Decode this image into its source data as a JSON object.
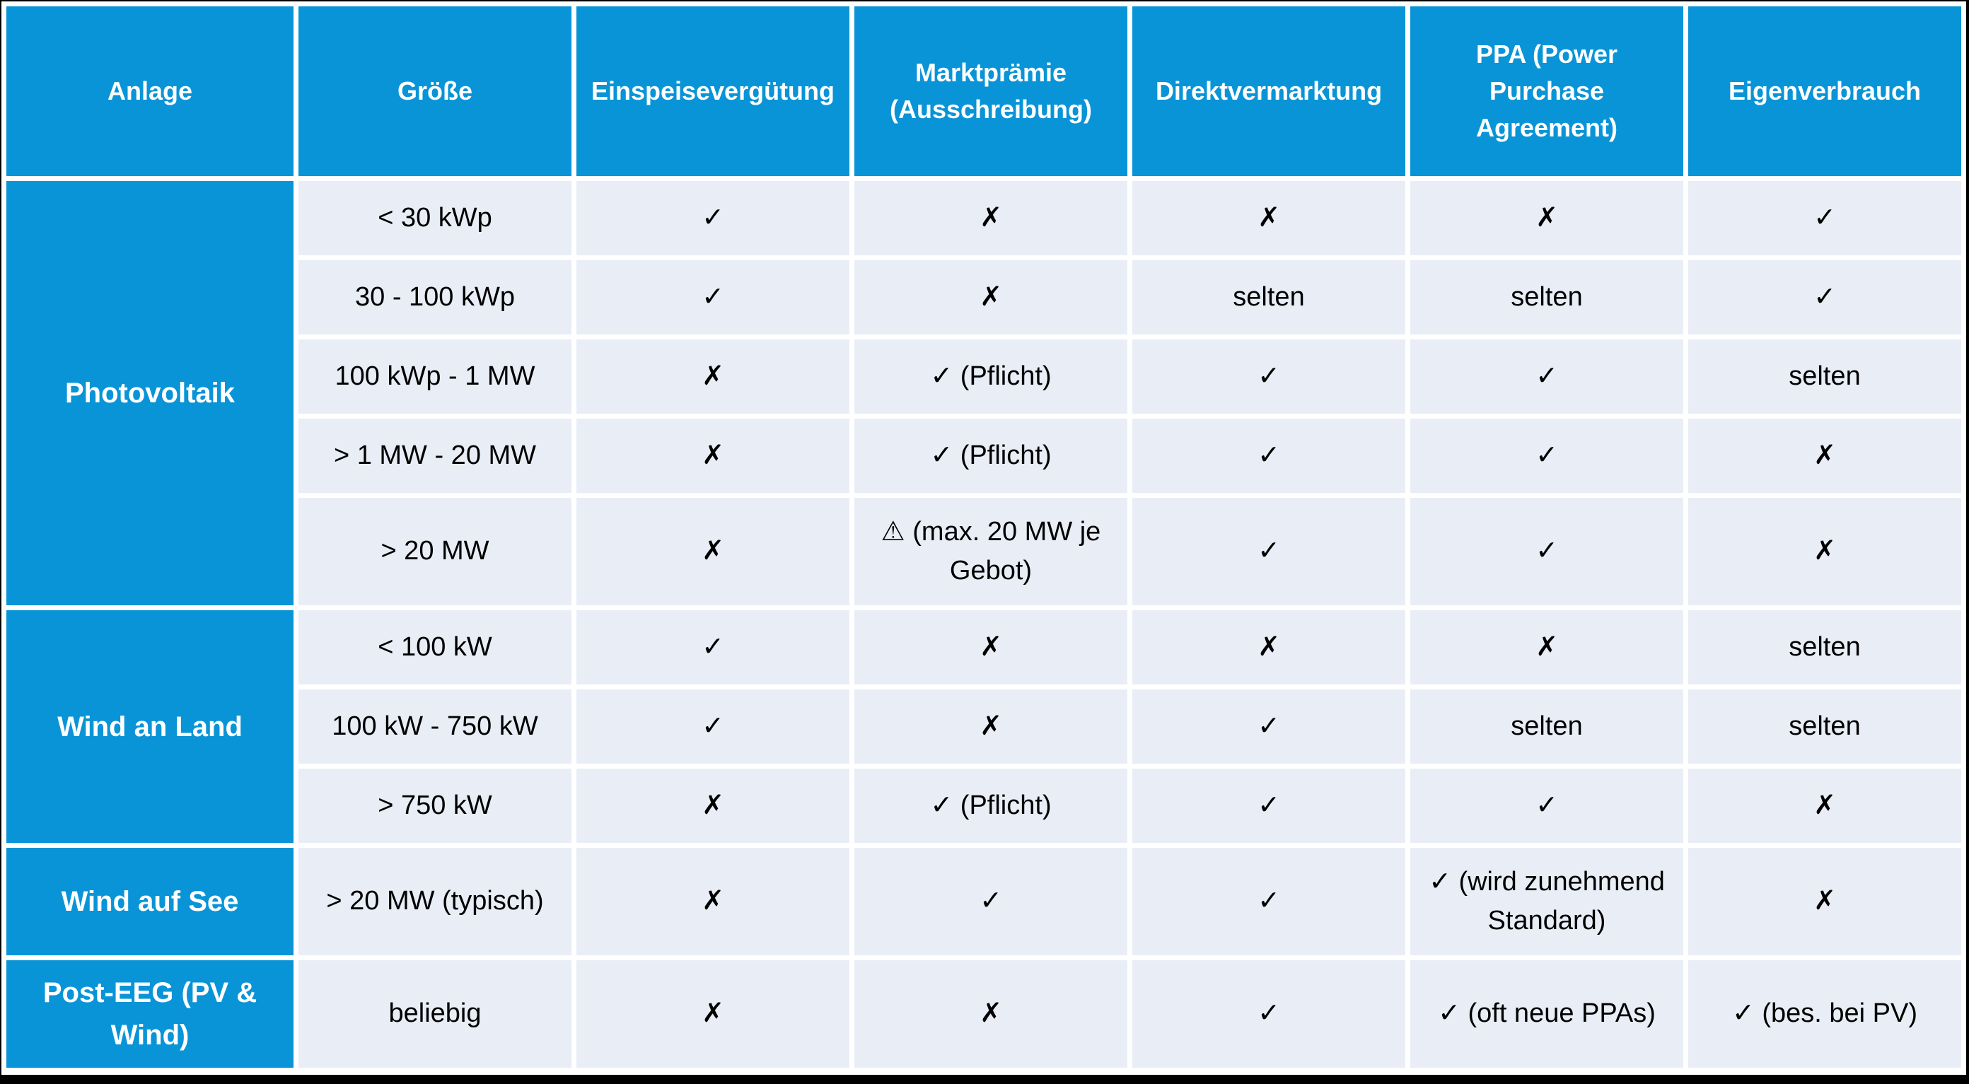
{
  "colors": {
    "header_bg": "#0994d7",
    "cell_bg": "#e9eef6",
    "gridline": "#ffffff",
    "frame": "#000000",
    "header_text": "#ffffff",
    "body_text": "#000000"
  },
  "chart_data": {
    "type": "table",
    "columns": [
      "Anlage",
      "Größe",
      "Einspeisevergütung",
      "Marktprämie (Ausschreibung)",
      "Direktvermarktung",
      "PPA (Power Purchase Agreement)",
      "Eigenverbrauch"
    ],
    "groups": [
      {
        "anlage": "Photovoltaik",
        "rows": [
          {
            "groesse": "< 30 kWp",
            "values": [
              "✓",
              "✗",
              "✗",
              "✗",
              "✓"
            ]
          },
          {
            "groesse": "30 - 100 kWp",
            "values": [
              "✓",
              "✗",
              "selten",
              "selten",
              "✓"
            ]
          },
          {
            "groesse": "100 kWp - 1 MW",
            "values": [
              "✗",
              "✓ (Pflicht)",
              "✓",
              "✓",
              "selten"
            ]
          },
          {
            "groesse": "> 1 MW - 20 MW",
            "values": [
              "✗",
              "✓ (Pflicht)",
              "✓",
              "✓",
              "✗"
            ]
          },
          {
            "groesse": "> 20 MW",
            "values": [
              "✗",
              "⚠ (max. 20 MW je Gebot)",
              "✓",
              "✓",
              "✗"
            ]
          }
        ]
      },
      {
        "anlage": "Wind an Land",
        "rows": [
          {
            "groesse": "< 100 kW",
            "values": [
              "✓",
              "✗",
              "✗",
              "✗",
              "selten"
            ]
          },
          {
            "groesse": "100 kW - 750 kW",
            "values": [
              "✓",
              "✗",
              "✓",
              "selten",
              "selten"
            ]
          },
          {
            "groesse": "> 750 kW",
            "values": [
              "✗",
              "✓ (Pflicht)",
              "✓",
              "✓",
              "✗"
            ]
          }
        ]
      },
      {
        "anlage": "Wind auf See",
        "rows": [
          {
            "groesse": "> 20 MW (typisch)",
            "values": [
              "✗",
              "✓",
              "✓",
              "✓ (wird zunehmend Standard)",
              "✗"
            ]
          }
        ]
      },
      {
        "anlage": "Post-EEG (PV & Wind)",
        "rows": [
          {
            "groesse": "beliebig",
            "values": [
              "✗",
              "✗",
              "✓",
              "✓ (oft neue PPAs)",
              "✓ (bes. bei PV)"
            ]
          }
        ]
      }
    ]
  }
}
